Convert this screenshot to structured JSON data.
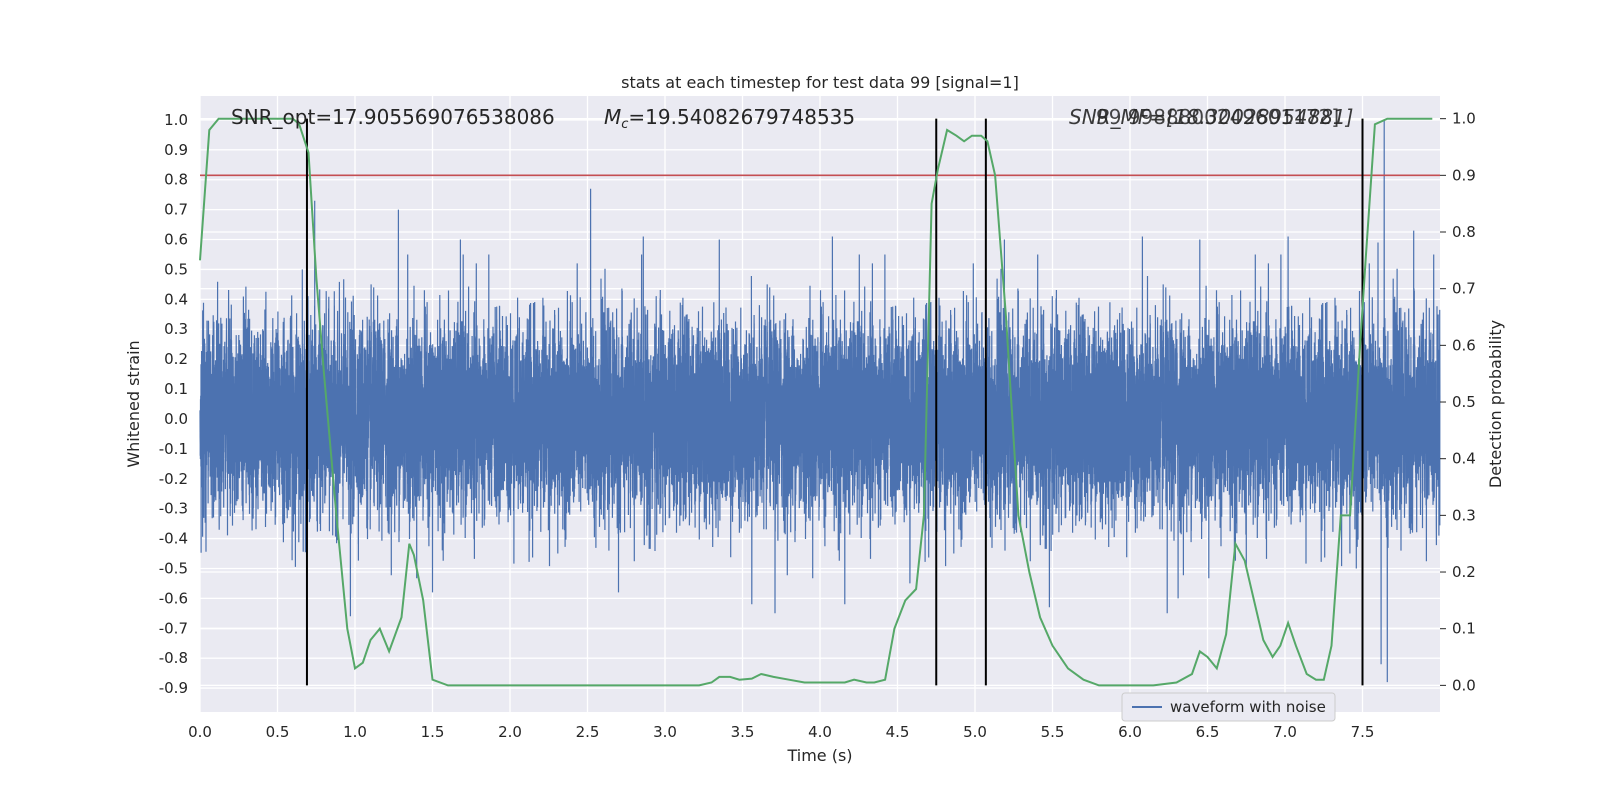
{
  "chart_data": {
    "type": "line",
    "title": "stats at each timestep for test data 99 [signal=1]",
    "xlabel": "Time (s)",
    "ylabel_left": "Whitened strain",
    "ylabel_right": "Detection probability",
    "xlim": [
      0.0,
      8.0
    ],
    "ylim_left": [
      -0.98,
      1.08
    ],
    "ylim_right": [
      -0.047,
      1.04
    ],
    "x_ticks": [
      "0.0",
      "0.5",
      "1.0",
      "1.5",
      "2.0",
      "2.5",
      "3.0",
      "3.5",
      "4.0",
      "4.5",
      "5.0",
      "5.5",
      "6.0",
      "6.5",
      "7.0",
      "7.5"
    ],
    "y_ticks_left": [
      "1.0",
      "0.9",
      "0.8",
      "0.7",
      "0.6",
      "0.5",
      "0.4",
      "0.3",
      "0.2",
      "0.1",
      "0.0",
      "-0.1",
      "-0.2",
      "-0.3",
      "-0.4",
      "-0.5",
      "-0.6",
      "-0.7",
      "-0.8",
      "-0.9"
    ],
    "y_ticks_right": [
      "1.0",
      "0.9",
      "0.8",
      "0.7",
      "0.6",
      "0.5",
      "0.4",
      "0.3",
      "0.2",
      "0.1",
      "0.0"
    ],
    "grid": true,
    "legend": {
      "placement": "lower-right",
      "entries": [
        "waveform with noise"
      ]
    },
    "annotations": {
      "snr_opt": "SNR_opt=17.905569076538086",
      "mc_symbol": "M",
      "mc_sub": "c",
      "mc_value": "=19.54082679748535",
      "overlap_a": "SNR_MF=[18.30028954881]",
      "overlap_b": "99 9988800249601172]"
    },
    "threshold": {
      "axis": "right",
      "value": 0.9,
      "color": "#c44e52"
    },
    "vertical_lines_x": [
      0.69,
      4.75,
      5.07,
      7.5
    ],
    "series": [
      {
        "name": "waveform with noise",
        "axis": "left",
        "style": "noise",
        "color": "#4c72b0",
        "sample_rate": 2048,
        "envelope": 0.35,
        "peaks": [
          {
            "x": 0.66,
            "y": 0.5
          },
          {
            "x": 0.74,
            "y": 0.73
          },
          {
            "x": 0.97,
            "y": -0.66
          },
          {
            "x": 1.28,
            "y": 0.7
          },
          {
            "x": 1.34,
            "y": 0.55
          },
          {
            "x": 1.5,
            "y": -0.58
          },
          {
            "x": 1.68,
            "y": 0.6
          },
          {
            "x": 2.52,
            "y": 0.77
          },
          {
            "x": 2.7,
            "y": -0.58
          },
          {
            "x": 2.86,
            "y": 0.61
          },
          {
            "x": 3.35,
            "y": 0.6
          },
          {
            "x": 3.56,
            "y": -0.62
          },
          {
            "x": 3.71,
            "y": -0.65
          },
          {
            "x": 4.08,
            "y": 0.61
          },
          {
            "x": 4.16,
            "y": -0.62
          },
          {
            "x": 4.58,
            "y": -0.55
          },
          {
            "x": 5.07,
            "y": -0.5
          },
          {
            "x": 5.19,
            "y": 0.6
          },
          {
            "x": 5.48,
            "y": -0.63
          },
          {
            "x": 6.08,
            "y": 0.61
          },
          {
            "x": 6.24,
            "y": -0.65
          },
          {
            "x": 6.31,
            "y": -0.6
          },
          {
            "x": 6.45,
            "y": 0.6
          },
          {
            "x": 6.75,
            "y": -0.5
          },
          {
            "x": 7.02,
            "y": 0.61
          },
          {
            "x": 7.46,
            "y": -0.5
          },
          {
            "x": 7.6,
            "y": 0.59
          },
          {
            "x": 7.64,
            "y": 1.0
          },
          {
            "x": 7.66,
            "y": -0.88
          },
          {
            "x": 7.62,
            "y": -0.82
          },
          {
            "x": 7.83,
            "y": 0.63
          }
        ]
      },
      {
        "name": "",
        "axis": "right",
        "style": "line",
        "color": "#55a868",
        "x": [
          0.0,
          0.06,
          0.12,
          0.2,
          0.3,
          0.4,
          0.5,
          0.6,
          0.64,
          0.7,
          0.75,
          0.8,
          0.88,
          0.95,
          1.0,
          1.05,
          1.1,
          1.16,
          1.22,
          1.3,
          1.35,
          1.38,
          1.44,
          1.5,
          1.6,
          1.8,
          2.0,
          2.2,
          2.4,
          2.55,
          2.7,
          2.9,
          3.1,
          3.22,
          3.3,
          3.35,
          3.42,
          3.48,
          3.56,
          3.62,
          3.7,
          3.8,
          3.9,
          4.0,
          4.08,
          4.16,
          4.22,
          4.3,
          4.35,
          4.42,
          4.48,
          4.55,
          4.62,
          4.67,
          4.72,
          4.76,
          4.82,
          4.88,
          4.93,
          4.98,
          5.04,
          5.08,
          5.13,
          5.2,
          5.28,
          5.35,
          5.42,
          5.5,
          5.6,
          5.7,
          5.8,
          5.9,
          6.0,
          6.15,
          6.3,
          6.4,
          6.45,
          6.5,
          6.56,
          6.62,
          6.68,
          6.74,
          6.8,
          6.86,
          6.92,
          6.97,
          7.02,
          7.07,
          7.14,
          7.2,
          7.25,
          7.3,
          7.36,
          7.42,
          7.48,
          7.52,
          7.58,
          7.66,
          7.75,
          7.85,
          7.95
        ],
        "y": [
          0.75,
          0.98,
          1.0,
          1.0,
          1.0,
          1.0,
          1.0,
          1.0,
          0.99,
          0.94,
          0.72,
          0.55,
          0.3,
          0.1,
          0.03,
          0.04,
          0.08,
          0.1,
          0.06,
          0.12,
          0.25,
          0.23,
          0.15,
          0.01,
          0.0,
          0.0,
          0.0,
          0.0,
          0.0,
          0.0,
          0.0,
          0.0,
          0.0,
          0.0,
          0.005,
          0.015,
          0.015,
          0.01,
          0.012,
          0.02,
          0.015,
          0.01,
          0.005,
          0.005,
          0.005,
          0.005,
          0.01,
          0.005,
          0.005,
          0.01,
          0.1,
          0.15,
          0.17,
          0.3,
          0.85,
          0.91,
          0.98,
          0.97,
          0.96,
          0.97,
          0.97,
          0.96,
          0.9,
          0.65,
          0.3,
          0.2,
          0.12,
          0.07,
          0.03,
          0.01,
          0.0,
          0.0,
          0.0,
          0.0,
          0.005,
          0.02,
          0.06,
          0.05,
          0.03,
          0.09,
          0.25,
          0.22,
          0.15,
          0.08,
          0.05,
          0.07,
          0.11,
          0.07,
          0.02,
          0.01,
          0.01,
          0.07,
          0.3,
          0.3,
          0.58,
          0.75,
          0.99,
          1.0,
          1.0,
          1.0,
          1.0
        ]
      }
    ]
  }
}
